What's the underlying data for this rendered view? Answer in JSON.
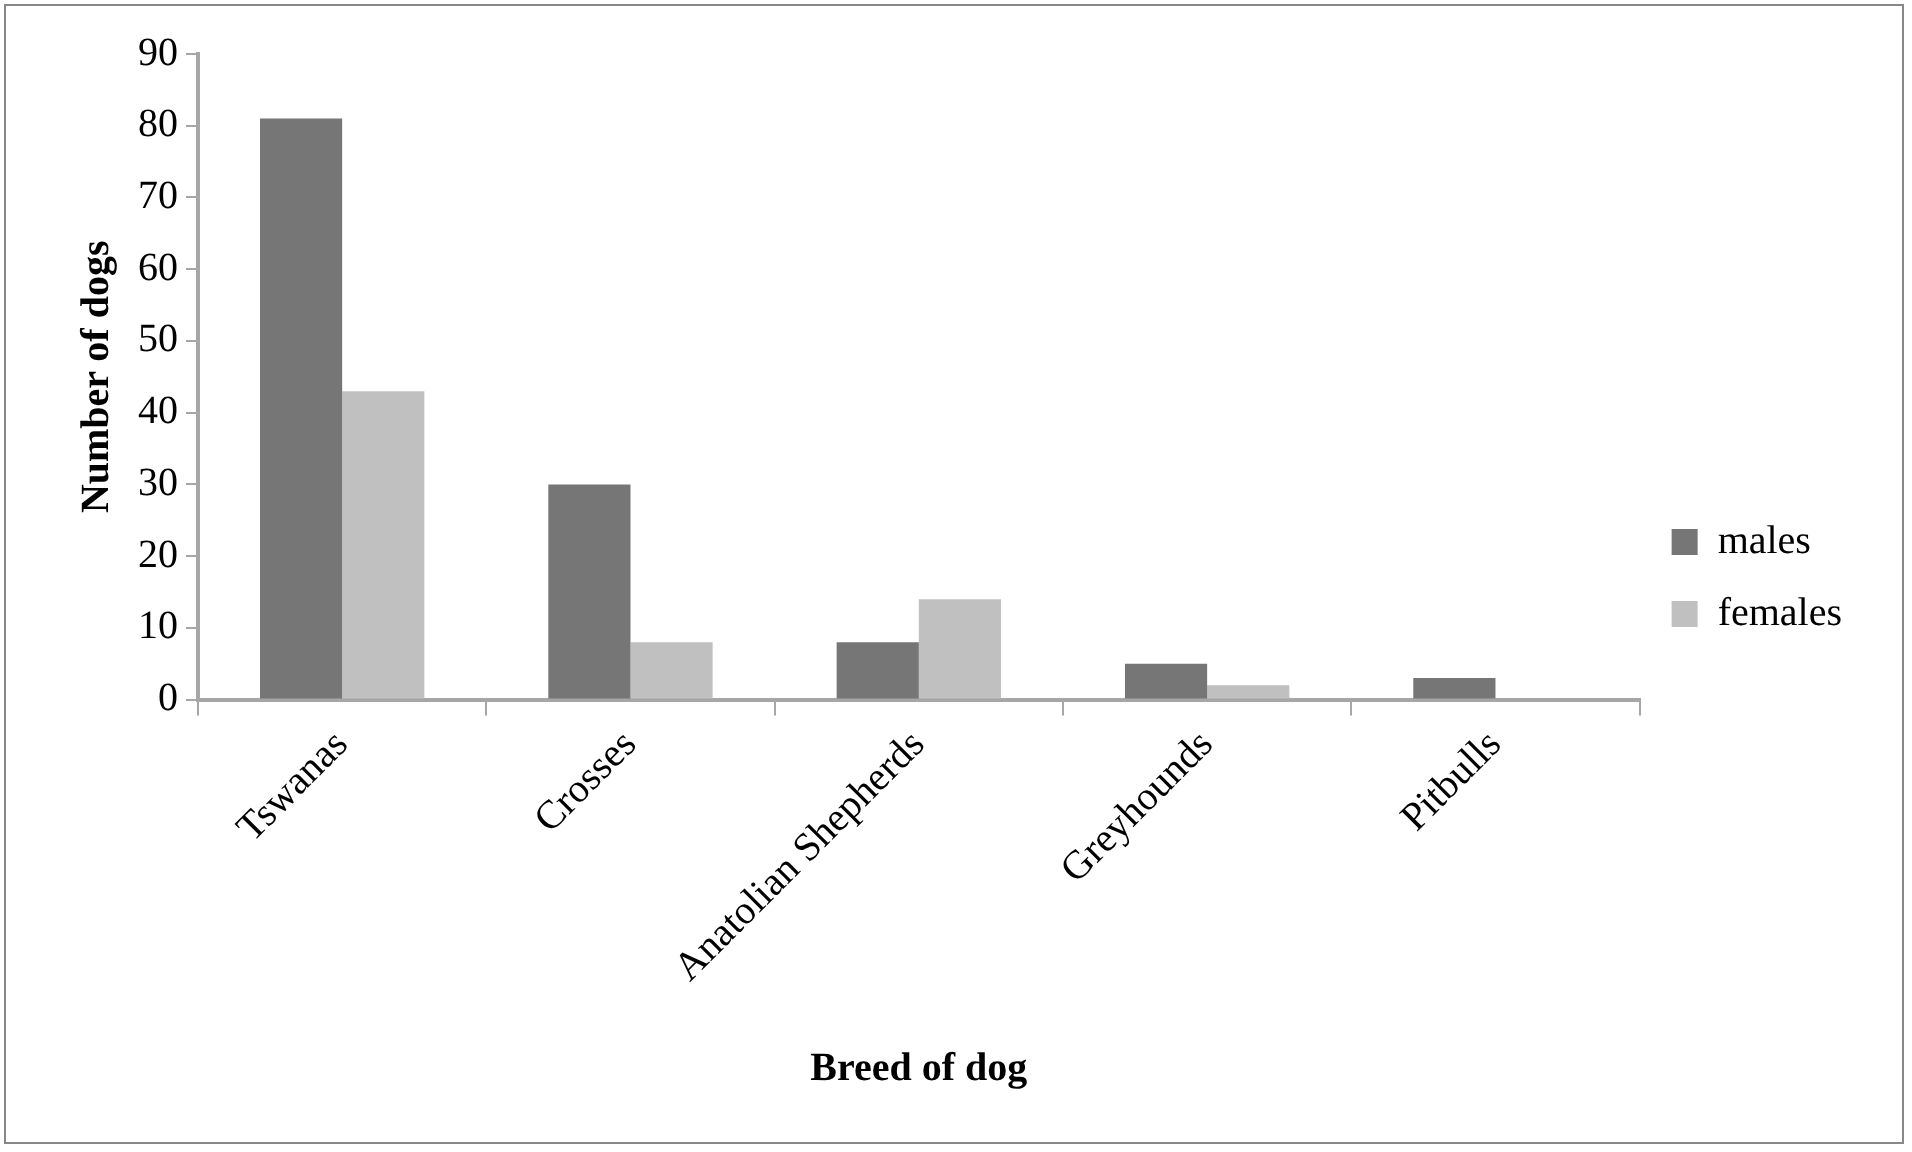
{
  "chart_data": {
    "type": "bar",
    "xlabel": "Breed of dog",
    "ylabel": "Number of dogs",
    "categories": [
      "Tswanas",
      "Crosses",
      "Anatolian Shepherds",
      "Greyhounds",
      "Pitbulls"
    ],
    "series": [
      {
        "name": "males",
        "color": "#767676",
        "values": [
          81,
          30,
          8,
          5,
          3
        ]
      },
      {
        "name": "females",
        "color": "#c0c0c0",
        "values": [
          43,
          8,
          14,
          2,
          0
        ]
      }
    ],
    "ylim": [
      0,
      90
    ],
    "yticks": [
      0,
      10,
      20,
      30,
      40,
      50,
      60,
      70,
      80,
      90
    ],
    "grid": false,
    "legend": "right"
  }
}
